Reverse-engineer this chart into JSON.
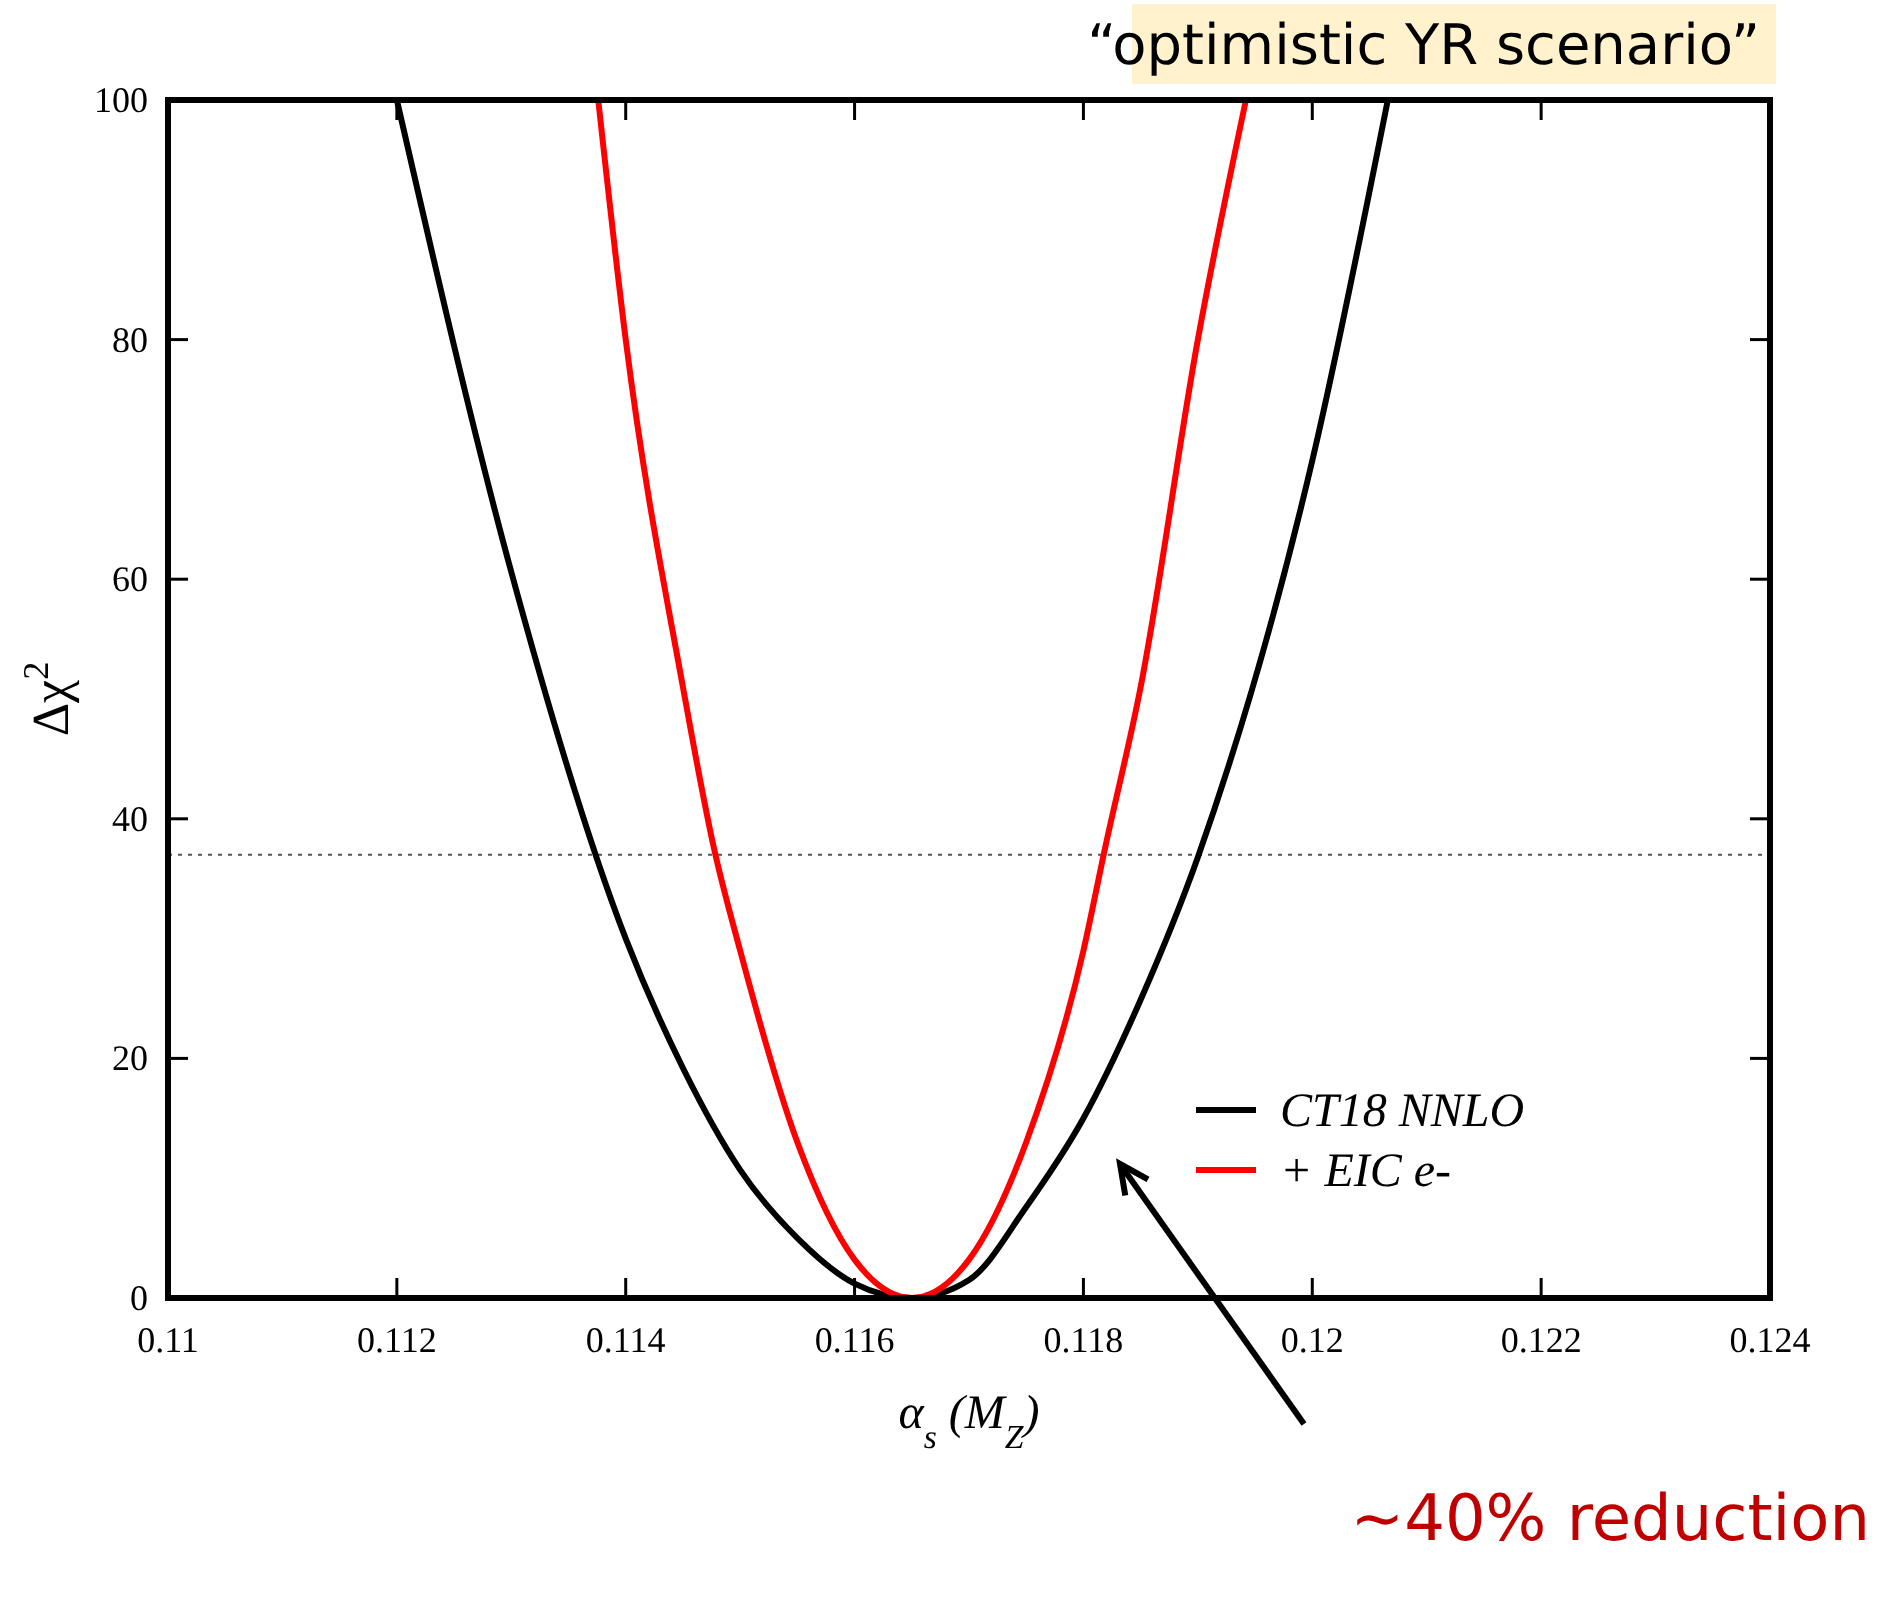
{
  "chart_data": {
    "type": "line",
    "title": "“optimistic YR scenario”",
    "xlabel": "α$_{s}$ (M$_{Z}$)",
    "ylabel": "Δχ$^{2}$",
    "xlim": [
      0.11,
      0.124
    ],
    "xticks": [
      0.11,
      0.112,
      0.114,
      0.116,
      0.118,
      0.12,
      0.122,
      0.124
    ],
    "ylim": [
      0,
      100
    ],
    "yticks": [
      0,
      20,
      40,
      60,
      80,
      100
    ],
    "grid": false,
    "legend": "bottom right",
    "marker": "none",
    "line_style": "solid",
    "series": [
      {
        "name": "CT18 NNLO",
        "color": "#000000",
        "x": [
          0.112,
          0.113,
          0.114,
          0.1145,
          0.115,
          0.1155,
          0.116,
          0.1165,
          0.117,
          0.1175,
          0.118,
          0.1185,
          0.119,
          0.12,
          0.12066
        ],
        "values": [
          100,
          60.6,
          30,
          19.2,
          10.7,
          5,
          1.2,
          0,
          1.5,
          7.6,
          15,
          24.9,
          36.8,
          69.9,
          100
        ]
      },
      {
        "name": "+ EIC e-",
        "color": "#ff0000",
        "x": [
          0.11376,
          0.114,
          0.1145,
          0.11477,
          0.115,
          0.1155,
          0.116,
          0.1165,
          0.117,
          0.1175,
          0.118,
          0.11819,
          0.1185,
          0.119,
          0.11942
        ],
        "values": [
          100,
          80,
          51,
          37.6,
          29,
          13,
          3.2,
          0,
          3.2,
          13,
          29,
          37.6,
          51,
          80,
          100
        ]
      }
    ],
    "ref_lines": [
      {
        "axis": "y",
        "value": 37,
        "line_style": "dotted",
        "color": "#555555"
      }
    ],
    "annotations": [
      "~40% reduction"
    ]
  }
}
